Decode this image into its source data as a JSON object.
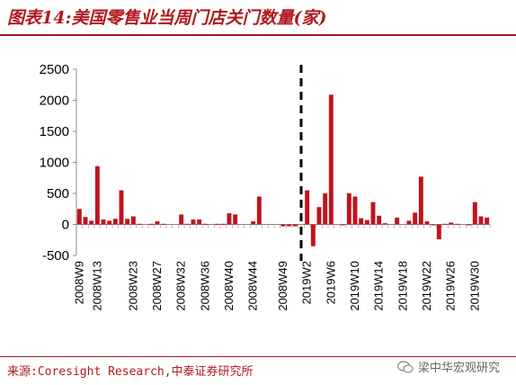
{
  "header": {
    "title": "图表14:美国零售业当周门店关门数量(家)"
  },
  "footer": {
    "source": "来源:Coresight Research,中泰证券研究所",
    "watermark": "梁中华宏观研究"
  },
  "colors": {
    "bar": "#c0141d",
    "axis": "#888888",
    "title": "#b0191e",
    "divider": "#000000"
  },
  "icons": {
    "watermark": "wechat-icon"
  },
  "chart_data": {
    "type": "bar",
    "ylim": [
      -500,
      2500
    ],
    "yticks": [
      -500,
      0,
      500,
      1000,
      1500,
      2000,
      2500
    ],
    "divider": "dashed vertical line between 2008W51 and 2019W1",
    "grid": false,
    "legend": "none",
    "x_tick_labels": [
      "2008W9",
      "2008W13",
      "2008W23",
      "2008W27",
      "2008W32",
      "2008W36",
      "2008W40",
      "2008W44",
      "2008W49",
      "2019W2",
      "2019W6",
      "2019W10",
      "2019W14",
      "2019W18",
      "2019W22",
      "2019W26",
      "2019W30"
    ],
    "categories": [
      "2008W9",
      "2008W10",
      "2008W11",
      "2008W13",
      "2008W14",
      "2008W15",
      "2008W19",
      "2008W21",
      "2008W22",
      "2008W23",
      "2008W24",
      "2008W25",
      "2008W26",
      "2008W27",
      "2008W28",
      "2008W29",
      "2008W30",
      "2008W32",
      "2008W33",
      "2008W34",
      "2008W35",
      "2008W36",
      "2008W37",
      "2008W38",
      "2008W39",
      "2008W40",
      "2008W41",
      "2008W42",
      "2008W43",
      "2008W44",
      "2008W45",
      "2008W46",
      "2008W47",
      "2008W48",
      "2008W49",
      "2008W50",
      "2008W51",
      "2019W1",
      "2019W2",
      "2019W3",
      "2019W4",
      "2019W5",
      "2019W6",
      "2019W7",
      "2019W8",
      "2019W9",
      "2019W10",
      "2019W11",
      "2019W12",
      "2019W13",
      "2019W14",
      "2019W15",
      "2019W16",
      "2019W17",
      "2019W18",
      "2019W19",
      "2019W20",
      "2019W21",
      "2019W22",
      "2019W23",
      "2019W24",
      "2019W25",
      "2019W26",
      "2019W27",
      "2019W28",
      "2019W29",
      "2019W30",
      "2019W31",
      "2019W32"
    ],
    "values": [
      250,
      120,
      60,
      940,
      80,
      60,
      90,
      550,
      90,
      130,
      10,
      0,
      10,
      50,
      10,
      0,
      0,
      160,
      10,
      80,
      80,
      10,
      0,
      10,
      10,
      180,
      160,
      0,
      0,
      50,
      450,
      0,
      0,
      0,
      -30,
      -30,
      -30,
      0,
      550,
      -350,
      280,
      500,
      2090,
      0,
      -10,
      500,
      450,
      100,
      70,
      360,
      140,
      20,
      0,
      110,
      0,
      60,
      190,
      770,
      50,
      -10,
      -240,
      10,
      30,
      10,
      0,
      -10,
      360,
      130,
      110
    ]
  }
}
